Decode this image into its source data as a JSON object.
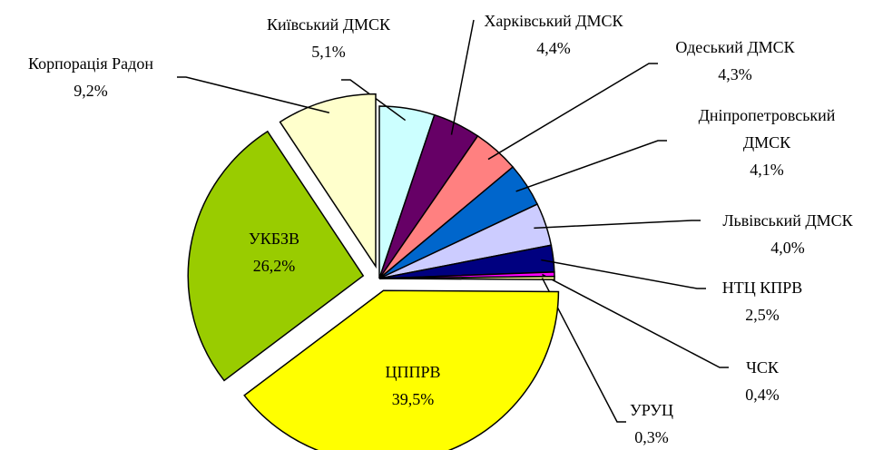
{
  "chart_data": {
    "type": "pie",
    "categories": [
      "Київський ДМСК",
      "Харківський ДМСК",
      "Одеський ДМСК",
      "Дніпропетровський ДМСК",
      "Львівський ДМСК",
      "НТЦ КПРВ",
      "ЧСК",
      "УРУЦ",
      "ЦППРВ",
      "УКБЗВ",
      "Корпорація Радон"
    ],
    "values": [
      5.1,
      4.4,
      4.3,
      4.1,
      4.0,
      2.5,
      0.4,
      0.3,
      39.5,
      26.2,
      9.2
    ],
    "value_labels": [
      "5,1%",
      "4,4%",
      "4,3%",
      "4,1%",
      "4,0%",
      "2,5%",
      "0,4%",
      "0,3%",
      "39,5%",
      "26,2%",
      "9,2%"
    ],
    "colors": [
      "#ccffff",
      "#660066",
      "#ff8080",
      "#0066cc",
      "#ccccff",
      "#000080",
      "#ff00ff",
      "#ffff99",
      "#ffff00",
      "#99cc00",
      "#ffffcc"
    ]
  }
}
